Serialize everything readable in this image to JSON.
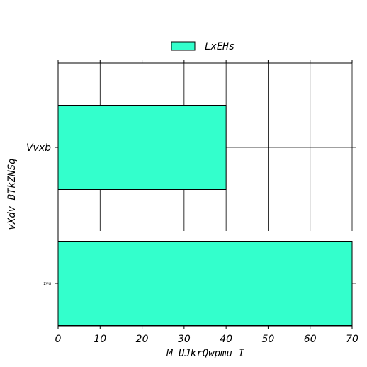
{
  "chart_data": {
    "type": "bar",
    "orientation": "horizontal",
    "categories": [
      "Vvxb",
      "lzvu"
    ],
    "series": [
      {
        "name": "LxEHs",
        "values": [
          40,
          70
        ],
        "color": "#33ffcc"
      }
    ],
    "xlabel": "M UJkrQwpmu I",
    "ylabel": "vXdv BTkZNSq",
    "xlim": [
      0,
      70
    ],
    "xticks": [
      0,
      10,
      20,
      30,
      40,
      50,
      60,
      70
    ],
    "grid": true,
    "legend_position": "top-center"
  }
}
